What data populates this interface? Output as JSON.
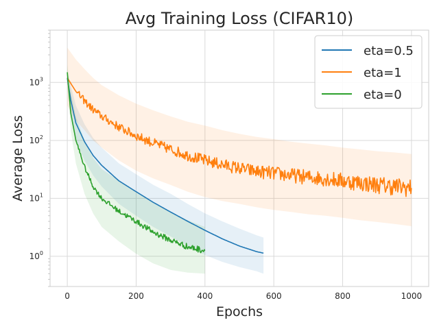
{
  "chart_data": {
    "type": "line",
    "title": "Avg Training Loss (CIFAR10)",
    "xlabel": "Epochs",
    "ylabel": "Average Loss",
    "xlim": [
      -50,
      1050
    ],
    "ylim": [
      0.3,
      8000
    ],
    "yscale": "log",
    "grid": true,
    "legend_position": "top-right",
    "x_ticks": [
      0,
      200,
      400,
      600,
      800,
      1000
    ],
    "y_ticks": [
      1,
      10,
      100,
      1000
    ],
    "series": [
      {
        "name": "eta=0.5",
        "color": "#1f77b4",
        "x": [
          0,
          10,
          25,
          50,
          75,
          100,
          150,
          200,
          250,
          300,
          350,
          400,
          450,
          500,
          550,
          570
        ],
        "y": [
          1200,
          500,
          200,
          95,
          55,
          37,
          20,
          13,
          8.5,
          5.8,
          4.0,
          2.8,
          2.0,
          1.5,
          1.2,
          1.13
        ],
        "band_lower": [
          900,
          300,
          100,
          45,
          25,
          16,
          8,
          5,
          3.2,
          2.2,
          1.5,
          1.05,
          0.8,
          0.65,
          0.55,
          0.5
        ],
        "band_upper": [
          1500,
          900,
          400,
          190,
          110,
          75,
          40,
          26,
          17,
          12,
          8,
          5.5,
          4.0,
          3.0,
          2.3,
          2.1
        ]
      },
      {
        "name": "eta=1",
        "color": "#ff7f0e",
        "x": [
          0,
          25,
          50,
          75,
          100,
          150,
          200,
          250,
          300,
          350,
          400,
          450,
          500,
          550,
          600,
          650,
          700,
          750,
          800,
          850,
          900,
          950,
          1000
        ],
        "y": [
          1200,
          700,
          480,
          340,
          260,
          170,
          120,
          90,
          70,
          55,
          45,
          38,
          33,
          29,
          27,
          25,
          23,
          22,
          20,
          18.5,
          17,
          16,
          15
        ],
        "band_lower": [
          400,
          220,
          150,
          100,
          75,
          45,
          30,
          22,
          17,
          13,
          10.5,
          9,
          8,
          7,
          6.3,
          5.8,
          5.3,
          5,
          4.6,
          4.2,
          3.9,
          3.6,
          3.3
        ],
        "band_upper": [
          4000,
          2500,
          1700,
          1200,
          900,
          600,
          430,
          330,
          260,
          210,
          180,
          150,
          130,
          115,
          105,
          95,
          88,
          82,
          75,
          70,
          65,
          62,
          58
        ]
      },
      {
        "name": "eta=0",
        "color": "#2ca02c",
        "x": [
          0,
          10,
          25,
          50,
          75,
          100,
          150,
          200,
          250,
          300,
          350,
          400
        ],
        "y": [
          1500,
          300,
          100,
          35,
          16,
          10,
          6.0,
          4.0,
          2.6,
          1.9,
          1.45,
          1.25
        ],
        "band_lower": [
          1100,
          150,
          40,
          12,
          5.5,
          3.2,
          1.8,
          1.1,
          0.75,
          0.58,
          0.52,
          0.5
        ],
        "band_upper": [
          2000,
          700,
          260,
          100,
          50,
          32,
          20,
          13,
          8.5,
          5.8,
          4.2,
          3.2
        ]
      }
    ]
  }
}
